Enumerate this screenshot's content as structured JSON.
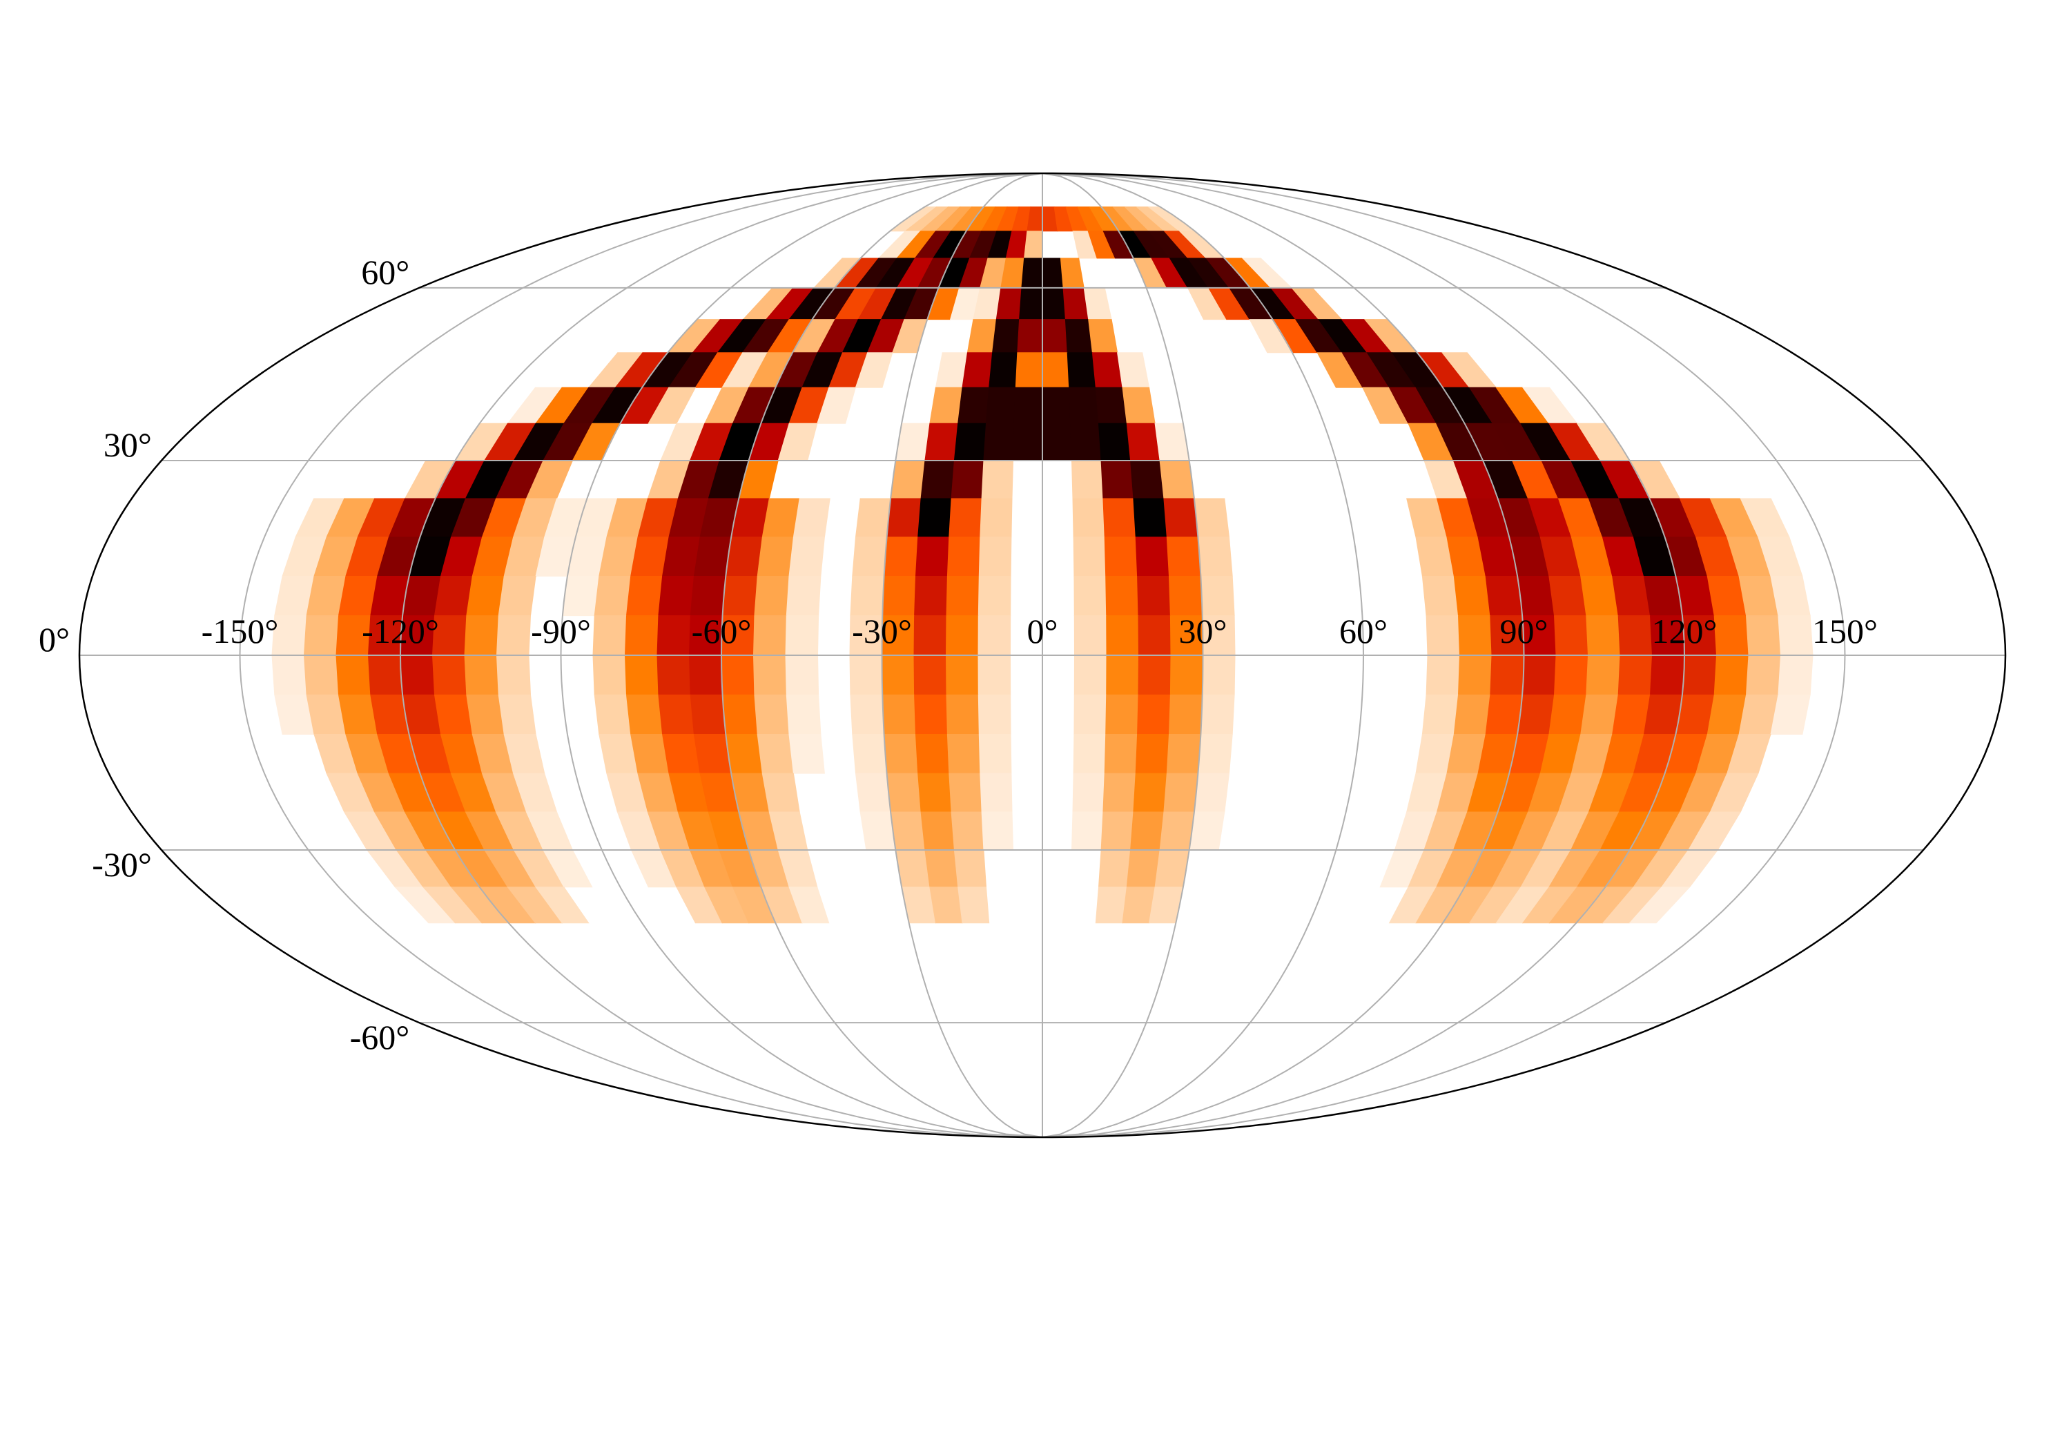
{
  "chart_data": {
    "type": "heatmap",
    "projection": "mollweide",
    "title": "",
    "xlabel": "",
    "ylabel": "",
    "xlim": [
      -180,
      180
    ],
    "ylim": [
      -90,
      90
    ],
    "grid": true,
    "colormap": "gist_heat_r",
    "value_range": [
      0,
      1
    ],
    "lon_ticks": [
      -150,
      -120,
      -90,
      -60,
      -30,
      0,
      30,
      60,
      90,
      120,
      150
    ],
    "lon_tick_labels": [
      "-150°",
      "-120°",
      "-90°",
      "-60°",
      "-30°",
      "0°",
      "30°",
      "60°",
      "90°",
      "120°",
      "150°"
    ],
    "lat_ticks": [
      60,
      30,
      0,
      -30,
      -60
    ],
    "lat_tick_labels": [
      "60°",
      "30°",
      "0°",
      "-30°",
      "-60°"
    ],
    "bin_size_deg": 6,
    "features": [
      {
        "shape": "arc",
        "lat_range": [
          15,
          72
        ],
        "start_lon": -118,
        "end_lon": -25,
        "width_deg": 9,
        "peak": 1.0
      },
      {
        "shape": "arc",
        "lat_range": [
          27,
          70
        ],
        "start_lon": -65,
        "end_lon": -15,
        "width_deg": 8,
        "peak": 1.0
      },
      {
        "shape": "arc",
        "lat_range": [
          15,
          72
        ],
        "start_lon": 118,
        "end_lon": 25,
        "width_deg": 9,
        "peak": 1.0
      },
      {
        "shape": "arc",
        "lat_range": [
          27,
          70
        ],
        "start_lon": 92,
        "end_lon": 40,
        "width_deg": 8,
        "peak": 0.95
      },
      {
        "shape": "letter_A",
        "apex_lat": 66,
        "base_lat": 22,
        "apex_lon": 0,
        "base_half_width": 21,
        "crossbar_lat": 37,
        "peak": 1.0
      },
      {
        "shape": "cap",
        "lat_min": 70,
        "peak": 0.35
      }
    ],
    "fading": {
      "lat_top": 22,
      "lat_bottom": -45,
      "factor_at_bottom": 0.12
    }
  }
}
